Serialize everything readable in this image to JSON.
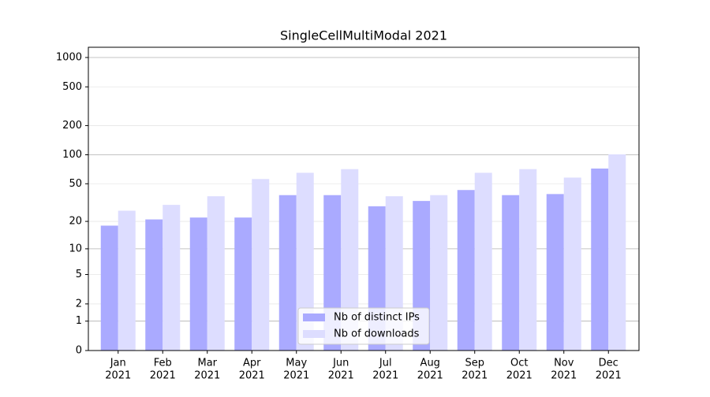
{
  "chart_data": {
    "type": "bar",
    "title": "SingleCellMultiModal 2021",
    "categories": [
      [
        "Jan",
        "2021"
      ],
      [
        "Feb",
        "2021"
      ],
      [
        "Mar",
        "2021"
      ],
      [
        "Apr",
        "2021"
      ],
      [
        "May",
        "2021"
      ],
      [
        "Jun",
        "2021"
      ],
      [
        "Jul",
        "2021"
      ],
      [
        "Aug",
        "2021"
      ],
      [
        "Sep",
        "2021"
      ],
      [
        "Oct",
        "2021"
      ],
      [
        "Nov",
        "2021"
      ],
      [
        "Dec",
        "2021"
      ]
    ],
    "series": [
      {
        "name": "Nb of distinct IPs",
        "color": "#aaaaff",
        "values": [
          18,
          21,
          22,
          22,
          38,
          38,
          29,
          33,
          43,
          38,
          39,
          72
        ]
      },
      {
        "name": "Nb of downloads",
        "color": "#ddddff",
        "values": [
          26,
          30,
          37,
          56,
          65,
          71,
          37,
          38,
          65,
          71,
          58,
          101
        ]
      }
    ],
    "yscale": "log1p",
    "ylim": [
      0,
      1273
    ],
    "yticks": [
      0,
      1,
      2,
      5,
      10,
      20,
      50,
      100,
      200,
      500,
      1000
    ],
    "grid": true,
    "legend": "lower center"
  }
}
